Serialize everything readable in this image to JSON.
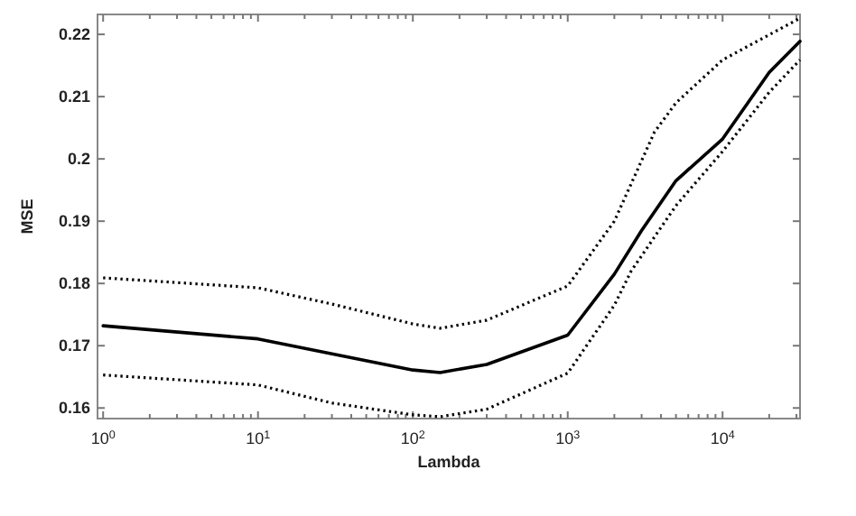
{
  "chart_data": {
    "type": "line",
    "xlabel": "Lambda",
    "ylabel": "MSE",
    "log": "x",
    "grid": false,
    "xlim": [
      0.92,
      31623
    ],
    "ylim": [
      0.1583,
      0.2232
    ],
    "xticks": [
      {
        "value": 1,
        "label": "10$^{0}$"
      },
      {
        "value": 2,
        "label": null
      },
      {
        "value": 3,
        "label": null
      },
      {
        "value": 4,
        "label": null
      },
      {
        "value": 5,
        "label": null
      },
      {
        "value": 6,
        "label": null
      },
      {
        "value": 7,
        "label": null
      },
      {
        "value": 8,
        "label": null
      },
      {
        "value": 9,
        "label": null
      },
      {
        "value": 10,
        "label": "10$^{1}$"
      },
      {
        "value": 20,
        "label": null
      },
      {
        "value": 30,
        "label": null
      },
      {
        "value": 40,
        "label": null
      },
      {
        "value": 50,
        "label": null
      },
      {
        "value": 60,
        "label": null
      },
      {
        "value": 70,
        "label": null
      },
      {
        "value": 80,
        "label": null
      },
      {
        "value": 90,
        "label": null
      },
      {
        "value": 100,
        "label": "10$^{2}$"
      },
      {
        "value": 200,
        "label": null
      },
      {
        "value": 300,
        "label": null
      },
      {
        "value": 400,
        "label": null
      },
      {
        "value": 500,
        "label": null
      },
      {
        "value": 600,
        "label": null
      },
      {
        "value": 700,
        "label": null
      },
      {
        "value": 800,
        "label": null
      },
      {
        "value": 900,
        "label": null
      },
      {
        "value": 1000,
        "label": "10$^{3}$"
      },
      {
        "value": 2000,
        "label": null
      },
      {
        "value": 3000,
        "label": null
      },
      {
        "value": 4000,
        "label": null
      },
      {
        "value": 5000,
        "label": null
      },
      {
        "value": 6000,
        "label": null
      },
      {
        "value": 7000,
        "label": null
      },
      {
        "value": 8000,
        "label": null
      },
      {
        "value": 9000,
        "label": null
      },
      {
        "value": 10000,
        "label": "10$^{4}$"
      },
      {
        "value": 20000,
        "label": null
      },
      {
        "value": 30000,
        "label": null
      }
    ],
    "yticks": [
      0.16,
      0.17,
      0.18,
      0.19,
      0.2,
      0.21,
      0.22
    ],
    "series": [
      {
        "color": "#000000",
        "line_style": "dotted",
        "x": [
          1,
          10,
          30,
          100,
          150,
          300,
          1000,
          2000,
          3630,
          5000,
          10000,
          31623
        ],
        "values": [
          0.1809,
          0.1793,
          0.1767,
          0.1735,
          0.1728,
          0.1741,
          0.1796,
          0.19,
          0.2043,
          0.209,
          0.2159,
          0.2226
        ]
      },
      {
        "color": "#000000",
        "line_style": "solid",
        "x": [
          1,
          10,
          100,
          150,
          300,
          1000,
          2000,
          3000,
          5000,
          10000,
          20000,
          31623
        ],
        "values": [
          0.1732,
          0.1711,
          0.1661,
          0.1657,
          0.167,
          0.1717,
          0.1815,
          0.1885,
          0.1965,
          0.2032,
          0.2139,
          0.2189
        ]
      },
      {
        "color": "#000000",
        "line_style": "dotted",
        "x": [
          1,
          10,
          30,
          100,
          150,
          300,
          1000,
          2000,
          2570,
          5000,
          10000,
          20000,
          31623
        ],
        "values": [
          0.1653,
          0.1637,
          0.1608,
          0.1589,
          0.1586,
          0.1598,
          0.1656,
          0.1765,
          0.182,
          0.1925,
          0.2012,
          0.2107,
          0.2159
        ]
      }
    ]
  }
}
